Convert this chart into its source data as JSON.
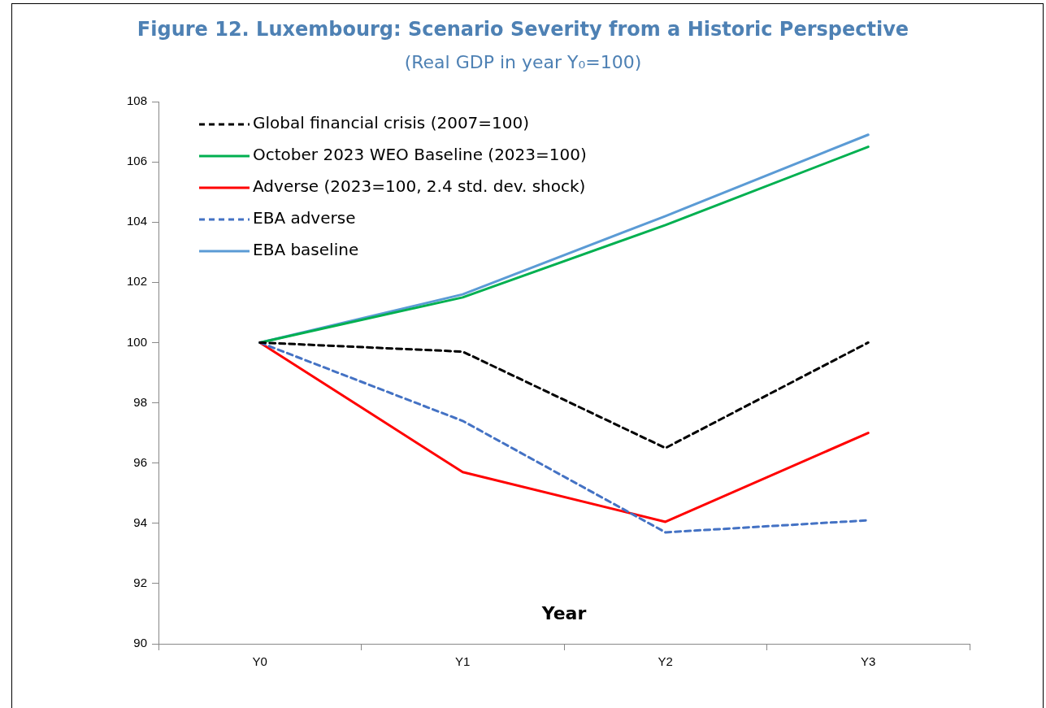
{
  "chart_data": {
    "type": "line",
    "title": "Figure 12. Luxembourg: Scenario Severity from a Historic Perspective",
    "subtitle": "(Real GDP in year Y₀=100)",
    "xlabel": "Year",
    "categories": [
      "Y0",
      "Y1",
      "Y2",
      "Y3"
    ],
    "ylim": [
      90,
      108
    ],
    "yticks": [
      90,
      92,
      94,
      96,
      98,
      100,
      102,
      104,
      106,
      108
    ],
    "grid": false,
    "legend": "top left",
    "marker": "none",
    "series": [
      {
        "name": "Global financial crisis (2007=100)",
        "color": "#000000",
        "line_style": "dashed",
        "values": [
          100,
          99.7,
          96.5,
          100.0
        ]
      },
      {
        "name": "October 2023 WEO Baseline (2023=100)",
        "color": "#00b050",
        "line_style": "solid",
        "values": [
          100,
          101.5,
          103.9,
          106.5
        ]
      },
      {
        "name": "Adverse (2023=100, 2.4 std. dev. shock)",
        "color": "#ff0000",
        "line_style": "solid",
        "values": [
          100,
          95.7,
          94.05,
          97.0
        ]
      },
      {
        "name": "EBA adverse",
        "color": "#4472c4",
        "line_style": "dashed",
        "values": [
          100,
          97.4,
          93.7,
          94.1
        ]
      },
      {
        "name": "EBA baseline",
        "color": "#5b9bd5",
        "line_style": "solid",
        "values": [
          100,
          101.6,
          104.2,
          106.9
        ]
      }
    ]
  }
}
